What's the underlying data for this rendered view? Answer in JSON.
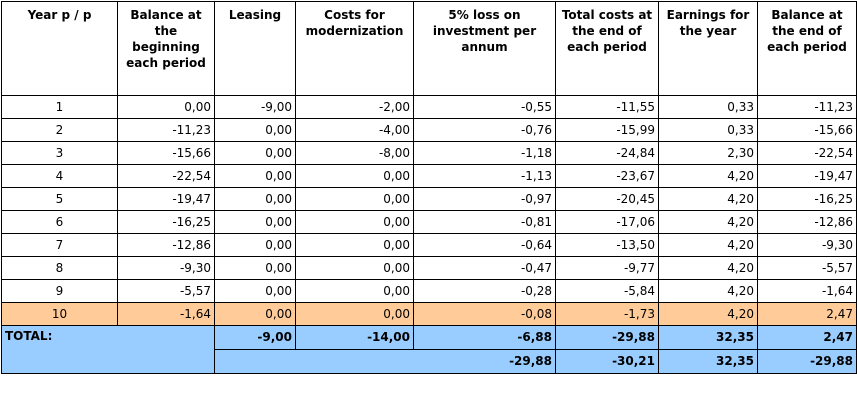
{
  "headers": [
    "Year p / p",
    "Balance at the beginning each period",
    "Leasing",
    "Costs for modernization",
    "5% loss on investment per annum",
    "Total costs at the end of each period",
    "Earnings for the year",
    "Balance at the end of each period"
  ],
  "rows": [
    [
      "1",
      "0,00",
      "-9,00",
      "-2,00",
      "-0,55",
      "-11,55",
      "0,33",
      "-11,23"
    ],
    [
      "2",
      "-11,23",
      "0,00",
      "-4,00",
      "-0,76",
      "-15,99",
      "0,33",
      "-15,66"
    ],
    [
      "3",
      "-15,66",
      "0,00",
      "-8,00",
      "-1,18",
      "-24,84",
      "2,30",
      "-22,54"
    ],
    [
      "4",
      "-22,54",
      "0,00",
      "0,00",
      "-1,13",
      "-23,67",
      "4,20",
      "-19,47"
    ],
    [
      "5",
      "-19,47",
      "0,00",
      "0,00",
      "-0,97",
      "-20,45",
      "4,20",
      "-16,25"
    ],
    [
      "6",
      "-16,25",
      "0,00",
      "0,00",
      "-0,81",
      "-17,06",
      "4,20",
      "-12,86"
    ],
    [
      "7",
      "-12,86",
      "0,00",
      "0,00",
      "-0,64",
      "-13,50",
      "4,20",
      "-9,30"
    ],
    [
      "8",
      "-9,30",
      "0,00",
      "0,00",
      "-0,47",
      "-9,77",
      "4,20",
      "-5,57"
    ],
    [
      "9",
      "-5,57",
      "0,00",
      "0,00",
      "-0,28",
      "-5,84",
      "4,20",
      "-1,64"
    ],
    [
      "10",
      "-1,64",
      "0,00",
      "0,00",
      "-0,08",
      "-1,73",
      "4,20",
      "2,47"
    ]
  ],
  "total": {
    "label": "TOTAL:",
    "leasing": "-9,00",
    "modernization": "-14,00",
    "loss": "-6,88",
    "total_costs": "-29,88",
    "earnings": "32,35",
    "balance_end": "2,47"
  },
  "total2": {
    "loss": "-29,88",
    "total_costs": "-30,21",
    "earnings": "32,35",
    "balance_end": "-29,88"
  },
  "colors": {
    "highlight_row": "#ffcc99",
    "total_rows": "#99ccff"
  }
}
